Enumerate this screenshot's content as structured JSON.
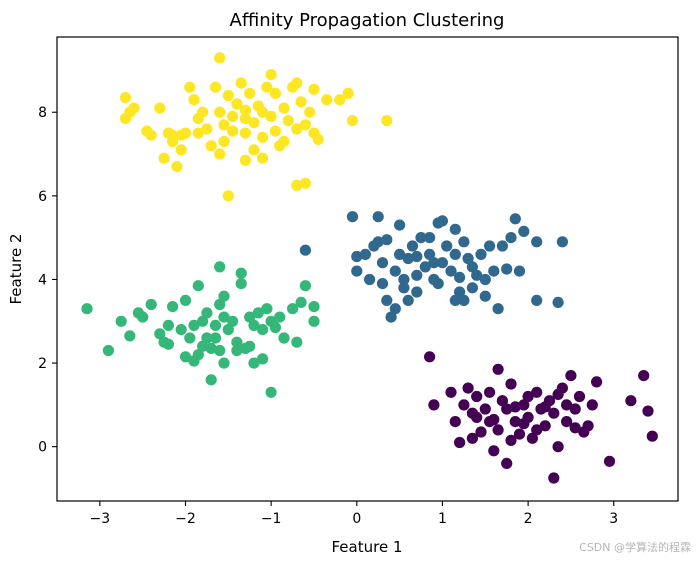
{
  "chart_data": {
    "type": "scatter",
    "title": "Affinity Propagation Clustering",
    "xlabel": "Feature 1",
    "ylabel": "Feature 2",
    "xlim": [
      -3.5,
      3.75
    ],
    "ylim": [
      -1.3,
      9.8
    ],
    "xticks": [
      -3,
      -2,
      -1,
      0,
      1,
      2,
      3
    ],
    "yticks": [
      0,
      2,
      4,
      6,
      8
    ],
    "grid": false,
    "legend": false,
    "series": [
      {
        "color": "#fde725",
        "points": [
          [
            -2.7,
            8.35
          ],
          [
            -2.65,
            8.0
          ],
          [
            -2.6,
            8.1
          ],
          [
            -2.7,
            7.85
          ],
          [
            -2.45,
            7.55
          ],
          [
            -2.4,
            7.45
          ],
          [
            -2.3,
            8.1
          ],
          [
            -2.2,
            7.5
          ],
          [
            -2.15,
            7.3
          ],
          [
            -2.05,
            7.45
          ],
          [
            -2.05,
            7.1
          ],
          [
            -2.25,
            6.9
          ],
          [
            -2.1,
            6.7
          ],
          [
            -2.0,
            7.5
          ],
          [
            -1.95,
            8.6
          ],
          [
            -1.9,
            8.3
          ],
          [
            -1.85,
            7.85
          ],
          [
            -1.8,
            8.0
          ],
          [
            -1.75,
            7.6
          ],
          [
            -1.7,
            7.2
          ],
          [
            -1.65,
            8.6
          ],
          [
            -1.6,
            9.3
          ],
          [
            -1.6,
            8.0
          ],
          [
            -1.55,
            7.7
          ],
          [
            -1.55,
            7.3
          ],
          [
            -1.5,
            8.4
          ],
          [
            -1.45,
            7.9
          ],
          [
            -1.45,
            7.55
          ],
          [
            -1.4,
            8.2
          ],
          [
            -1.35,
            8.7
          ],
          [
            -1.3,
            7.85
          ],
          [
            -1.3,
            7.5
          ],
          [
            -1.3,
            6.85
          ],
          [
            -1.25,
            8.45
          ],
          [
            -1.2,
            7.75
          ],
          [
            -1.15,
            8.15
          ],
          [
            -1.1,
            7.4
          ],
          [
            -1.1,
            6.9
          ],
          [
            -1.05,
            8.6
          ],
          [
            -1.0,
            7.9
          ],
          [
            -0.95,
            8.45
          ],
          [
            -0.95,
            7.55
          ],
          [
            -0.9,
            7.2
          ],
          [
            -1.0,
            8.9
          ],
          [
            -0.85,
            8.1
          ],
          [
            -0.8,
            7.8
          ],
          [
            -0.75,
            8.6
          ],
          [
            -0.7,
            8.7
          ],
          [
            -0.7,
            7.6
          ],
          [
            -0.65,
            8.25
          ],
          [
            -0.6,
            7.7
          ],
          [
            -0.55,
            8.0
          ],
          [
            -0.5,
            7.5
          ],
          [
            -0.45,
            7.35
          ],
          [
            -0.6,
            6.3
          ],
          [
            -0.7,
            6.25
          ],
          [
            -0.5,
            8.55
          ],
          [
            -0.35,
            8.3
          ],
          [
            -0.2,
            8.3
          ],
          [
            -0.1,
            8.45
          ],
          [
            -0.05,
            7.8
          ],
          [
            0.35,
            7.8
          ],
          [
            -1.5,
            6.0
          ],
          [
            -1.85,
            7.5
          ],
          [
            -1.3,
            8.05
          ],
          [
            -1.1,
            8.0
          ],
          [
            -1.6,
            7.0
          ],
          [
            -0.85,
            7.3
          ],
          [
            -2.15,
            7.45
          ],
          [
            -1.2,
            7.1
          ]
        ]
      },
      {
        "color": "#31688e",
        "points": [
          [
            -0.6,
            4.7
          ],
          [
            -0.05,
            5.5
          ],
          [
            0.0,
            4.55
          ],
          [
            0.0,
            4.2
          ],
          [
            0.1,
            4.6
          ],
          [
            0.15,
            4.0
          ],
          [
            0.2,
            4.8
          ],
          [
            0.25,
            4.9
          ],
          [
            0.25,
            5.5
          ],
          [
            0.3,
            4.4
          ],
          [
            0.35,
            4.95
          ],
          [
            0.35,
            3.5
          ],
          [
            0.4,
            3.1
          ],
          [
            0.45,
            3.3
          ],
          [
            0.45,
            4.2
          ],
          [
            0.5,
            4.6
          ],
          [
            0.5,
            5.3
          ],
          [
            0.55,
            3.8
          ],
          [
            0.55,
            4.0
          ],
          [
            0.6,
            4.5
          ],
          [
            0.6,
            3.5
          ],
          [
            0.65,
            4.8
          ],
          [
            0.7,
            4.1
          ],
          [
            0.7,
            3.7
          ],
          [
            0.75,
            5.0
          ],
          [
            0.8,
            4.3
          ],
          [
            0.85,
            4.6
          ],
          [
            0.85,
            5.0
          ],
          [
            0.9,
            4.0
          ],
          [
            0.95,
            3.9
          ],
          [
            0.95,
            5.35
          ],
          [
            1.0,
            4.4
          ],
          [
            1.0,
            5.4
          ],
          [
            1.05,
            4.8
          ],
          [
            1.1,
            4.2
          ],
          [
            1.15,
            5.2
          ],
          [
            1.15,
            4.6
          ],
          [
            1.2,
            3.7
          ],
          [
            1.25,
            4.9
          ],
          [
            1.25,
            3.5
          ],
          [
            1.3,
            4.5
          ],
          [
            1.35,
            4.3
          ],
          [
            1.35,
            3.8
          ],
          [
            1.4,
            4.1
          ],
          [
            1.45,
            4.6
          ],
          [
            1.5,
            4.0
          ],
          [
            1.55,
            4.8
          ],
          [
            1.6,
            4.2
          ],
          [
            1.65,
            3.3
          ],
          [
            1.7,
            4.8
          ],
          [
            1.75,
            4.25
          ],
          [
            1.8,
            5.0
          ],
          [
            1.85,
            5.45
          ],
          [
            1.9,
            4.2
          ],
          [
            1.95,
            5.15
          ],
          [
            2.1,
            4.9
          ],
          [
            2.1,
            3.5
          ],
          [
            2.35,
            3.45
          ],
          [
            2.4,
            4.9
          ],
          [
            1.15,
            3.5
          ],
          [
            0.3,
            3.9
          ],
          [
            0.7,
            4.55
          ],
          [
            0.9,
            4.4
          ],
          [
            1.2,
            4.05
          ],
          [
            1.5,
            3.6
          ]
        ]
      },
      {
        "color": "#35b779",
        "points": [
          [
            -3.15,
            3.3
          ],
          [
            -2.9,
            2.3
          ],
          [
            -2.75,
            3.0
          ],
          [
            -2.65,
            2.65
          ],
          [
            -2.55,
            3.2
          ],
          [
            -2.5,
            3.1
          ],
          [
            -2.4,
            3.4
          ],
          [
            -2.3,
            2.7
          ],
          [
            -2.25,
            2.5
          ],
          [
            -2.2,
            2.9
          ],
          [
            -2.15,
            3.35
          ],
          [
            -2.05,
            2.8
          ],
          [
            -2.0,
            3.5
          ],
          [
            -1.95,
            2.6
          ],
          [
            -1.9,
            2.9
          ],
          [
            -1.85,
            2.2
          ],
          [
            -1.8,
            2.4
          ],
          [
            -1.75,
            3.2
          ],
          [
            -1.75,
            2.6
          ],
          [
            -1.7,
            1.6
          ],
          [
            -1.65,
            2.9
          ],
          [
            -1.6,
            2.3
          ],
          [
            -1.6,
            3.4
          ],
          [
            -1.55,
            3.6
          ],
          [
            -1.55,
            2.0
          ],
          [
            -1.5,
            2.8
          ],
          [
            -1.45,
            3.0
          ],
          [
            -1.4,
            2.5
          ],
          [
            -1.35,
            3.9
          ],
          [
            -1.3,
            2.35
          ],
          [
            -1.25,
            3.1
          ],
          [
            -1.2,
            2.9
          ],
          [
            -1.2,
            2.0
          ],
          [
            -1.15,
            3.2
          ],
          [
            -1.1,
            2.8
          ],
          [
            -1.05,
            3.3
          ],
          [
            -1.0,
            3.0
          ],
          [
            -1.0,
            1.3
          ],
          [
            -0.95,
            2.85
          ],
          [
            -0.9,
            3.1
          ],
          [
            -0.85,
            2.6
          ],
          [
            -0.75,
            3.3
          ],
          [
            -0.7,
            2.5
          ],
          [
            -0.65,
            3.45
          ],
          [
            -0.6,
            3.85
          ],
          [
            -0.5,
            3.0
          ],
          [
            -0.5,
            3.35
          ],
          [
            -1.6,
            4.3
          ],
          [
            -1.35,
            4.15
          ],
          [
            -1.85,
            3.85
          ],
          [
            -1.9,
            2.05
          ],
          [
            -1.7,
            2.35
          ],
          [
            -1.1,
            2.1
          ],
          [
            -1.4,
            2.3
          ],
          [
            -2.0,
            2.15
          ],
          [
            -1.25,
            2.4
          ],
          [
            -1.55,
            3.1
          ],
          [
            -1.65,
            2.6
          ],
          [
            -2.2,
            2.45
          ],
          [
            -1.8,
            3.0
          ]
        ]
      },
      {
        "color": "#440154",
        "points": [
          [
            0.85,
            2.15
          ],
          [
            0.9,
            1.0
          ],
          [
            1.1,
            1.3
          ],
          [
            1.15,
            0.6
          ],
          [
            1.2,
            0.1
          ],
          [
            1.25,
            1.0
          ],
          [
            1.3,
            1.4
          ],
          [
            1.35,
            0.8
          ],
          [
            1.4,
            1.2
          ],
          [
            1.45,
            0.35
          ],
          [
            1.5,
            0.9
          ],
          [
            1.55,
            0.6
          ],
          [
            1.6,
            -0.1
          ],
          [
            1.65,
            1.85
          ],
          [
            1.65,
            0.4
          ],
          [
            1.7,
            1.1
          ],
          [
            1.75,
            0.9
          ],
          [
            1.8,
            1.5
          ],
          [
            1.85,
            0.6
          ],
          [
            1.9,
            0.3
          ],
          [
            1.95,
            1.0
          ],
          [
            2.0,
            0.7
          ],
          [
            2.05,
            0.2
          ],
          [
            2.1,
            1.3
          ],
          [
            2.15,
            0.9
          ],
          [
            2.2,
            0.5
          ],
          [
            2.25,
            1.1
          ],
          [
            2.3,
            0.8
          ],
          [
            2.3,
            -0.75
          ],
          [
            2.35,
            0.0
          ],
          [
            2.4,
            1.4
          ],
          [
            2.45,
            0.6
          ],
          [
            2.5,
            1.7
          ],
          [
            2.55,
            0.9
          ],
          [
            2.6,
            1.2
          ],
          [
            2.7,
            0.5
          ],
          [
            2.75,
            1.0
          ],
          [
            2.8,
            1.55
          ],
          [
            2.95,
            -0.35
          ],
          [
            3.2,
            1.1
          ],
          [
            3.35,
            1.7
          ],
          [
            3.4,
            0.85
          ],
          [
            3.45,
            0.25
          ],
          [
            1.75,
            -0.4
          ],
          [
            2.55,
            0.45
          ],
          [
            1.4,
            0.7
          ],
          [
            2.0,
            1.2
          ],
          [
            2.2,
            0.95
          ],
          [
            1.55,
            1.3
          ],
          [
            1.85,
            0.95
          ],
          [
            2.1,
            0.4
          ],
          [
            1.95,
            0.55
          ],
          [
            2.45,
            1.0
          ],
          [
            1.35,
            0.2
          ],
          [
            2.65,
            0.35
          ],
          [
            1.6,
            0.65
          ],
          [
            2.35,
            1.25
          ],
          [
            1.8,
            0.15
          ]
        ]
      }
    ]
  },
  "watermark": "CSDN @学算法的程霖"
}
